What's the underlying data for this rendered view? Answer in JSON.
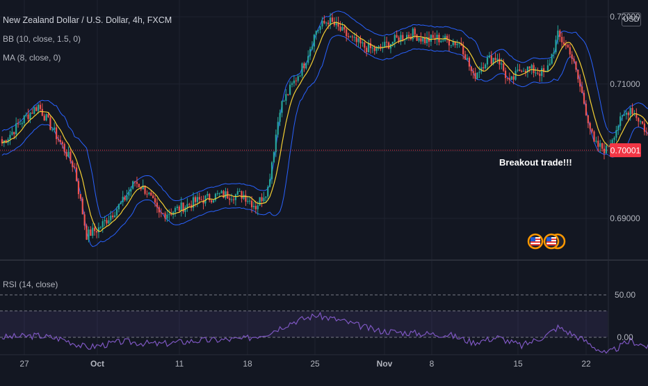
{
  "header": {
    "title": "New Zealand Dollar / U.S. Dollar, 4h, FXCM",
    "currency_button": "USD",
    "bb_legend": "BB (10, close, 1.5, 0)",
    "ma_legend": "MA (8, close, 0)",
    "rsi_legend": "RSI (14, close)"
  },
  "annotation": "Breakout trade!!!",
  "icons": [
    "us-flag-event-icon",
    "us-flag-event-icon",
    "us-flag-event-icon"
  ],
  "colors": {
    "background": "#131722",
    "up_candle": "#26a69a",
    "down_candle": "#ef5350",
    "bollinger_band": "#2962ff",
    "moving_average": "#f5d033",
    "rsi_line": "#7e57c2",
    "last_price_badge": "#f23645",
    "grid": "#1f2330"
  },
  "chart_data": [
    {
      "type": "candlestick",
      "title": "New Zealand Dollar / U.S. Dollar, 4h, FXCM",
      "x_tick_labels": [
        "27",
        "Oct",
        "11",
        "18",
        "25",
        "Nov",
        "8",
        "15",
        "22"
      ],
      "y_tick_labels": [
        "0.72000",
        "0.71000",
        "0.69000"
      ],
      "ylim": [
        0.684,
        0.7225
      ],
      "last_price": "0.70001",
      "series": [
        {
          "name": "BB (10, close, 1.5, 0)",
          "style": "band"
        },
        {
          "name": "MA (8, close, 0)",
          "style": "line"
        }
      ],
      "close_path": [
        {
          "x": "Sep 24",
          "y": 0.7012
        },
        {
          "x": "Sep 26",
          "y": 0.7052
        },
        {
          "x": "Sep 27",
          "y": 0.7068
        },
        {
          "x": "Sep 29",
          "y": 0.7008
        },
        {
          "x": "Sep 30",
          "y": 0.6975
        },
        {
          "x": "Oct 1",
          "y": 0.6875
        },
        {
          "x": "Oct 2",
          "y": 0.6885
        },
        {
          "x": "Oct 4",
          "y": 0.6925
        },
        {
          "x": "Oct 5",
          "y": 0.6955
        },
        {
          "x": "Oct 6",
          "y": 0.694
        },
        {
          "x": "Oct 7",
          "y": 0.6905
        },
        {
          "x": "Oct 8",
          "y": 0.691
        },
        {
          "x": "Oct 10",
          "y": 0.6925
        },
        {
          "x": "Oct 12",
          "y": 0.6935
        },
        {
          "x": "Oct 14",
          "y": 0.6935
        },
        {
          "x": "Oct 15",
          "y": 0.6918
        },
        {
          "x": "Oct 16",
          "y": 0.6945
        },
        {
          "x": "Oct 17",
          "y": 0.7065
        },
        {
          "x": "Oct 19",
          "y": 0.713
        },
        {
          "x": "Oct 20",
          "y": 0.718
        },
        {
          "x": "Oct 21",
          "y": 0.7195
        },
        {
          "x": "Oct 23",
          "y": 0.7165
        },
        {
          "x": "Oct 24",
          "y": 0.7155
        },
        {
          "x": "Oct 25",
          "y": 0.715
        },
        {
          "x": "Oct 27",
          "y": 0.717
        },
        {
          "x": "Oct 28",
          "y": 0.7175
        },
        {
          "x": "Oct 29",
          "y": 0.7165
        },
        {
          "x": "Oct 30",
          "y": 0.7168
        },
        {
          "x": "Nov 1",
          "y": 0.716
        },
        {
          "x": "Nov 2",
          "y": 0.711
        },
        {
          "x": "Nov 3",
          "y": 0.7135
        },
        {
          "x": "Nov 4",
          "y": 0.714
        },
        {
          "x": "Nov 5",
          "y": 0.71
        },
        {
          "x": "Nov 6",
          "y": 0.7125
        },
        {
          "x": "Nov 8",
          "y": 0.7115
        },
        {
          "x": "Nov 9",
          "y": 0.7172
        },
        {
          "x": "Nov 10",
          "y": 0.715
        },
        {
          "x": "Nov 11",
          "y": 0.7085
        },
        {
          "x": "Nov 12",
          "y": 0.701
        },
        {
          "x": "Nov 13",
          "y": 0.7002
        },
        {
          "x": "Nov 14",
          "y": 0.704
        },
        {
          "x": "Nov 15",
          "y": 0.7065
        },
        {
          "x": "Nov 16",
          "y": 0.704
        },
        {
          "x": "Nov 17",
          "y": 0.7001
        }
      ]
    },
    {
      "type": "line",
      "title": "RSI (14, close)",
      "y_tick_labels": [
        "50.00",
        "0.00"
      ],
      "series": [
        {
          "name": "RSI (14, close)"
        }
      ],
      "path": [
        {
          "x": "Sep 24",
          "y": 50
        },
        {
          "x": "Sep 27",
          "y": 52
        },
        {
          "x": "Sep 29",
          "y": 48
        },
        {
          "x": "Oct 1",
          "y": 38
        },
        {
          "x": "Oct 4",
          "y": 45
        },
        {
          "x": "Oct 7",
          "y": 42
        },
        {
          "x": "Oct 10",
          "y": 46
        },
        {
          "x": "Oct 14",
          "y": 48
        },
        {
          "x": "Oct 16",
          "y": 55
        },
        {
          "x": "Oct 18",
          "y": 68
        },
        {
          "x": "Oct 20",
          "y": 76
        },
        {
          "x": "Oct 22",
          "y": 70
        },
        {
          "x": "Oct 25",
          "y": 58
        },
        {
          "x": "Oct 28",
          "y": 55
        },
        {
          "x": "Oct 31",
          "y": 53
        },
        {
          "x": "Nov 2",
          "y": 44
        },
        {
          "x": "Nov 4",
          "y": 50
        },
        {
          "x": "Nov 6",
          "y": 40
        },
        {
          "x": "Nov 8",
          "y": 52
        },
        {
          "x": "Nov 9",
          "y": 62
        },
        {
          "x": "Nov 11",
          "y": 48
        },
        {
          "x": "Nov 13",
          "y": 30
        },
        {
          "x": "Nov 15",
          "y": 46
        },
        {
          "x": "Nov 17",
          "y": 36
        }
      ]
    }
  ]
}
